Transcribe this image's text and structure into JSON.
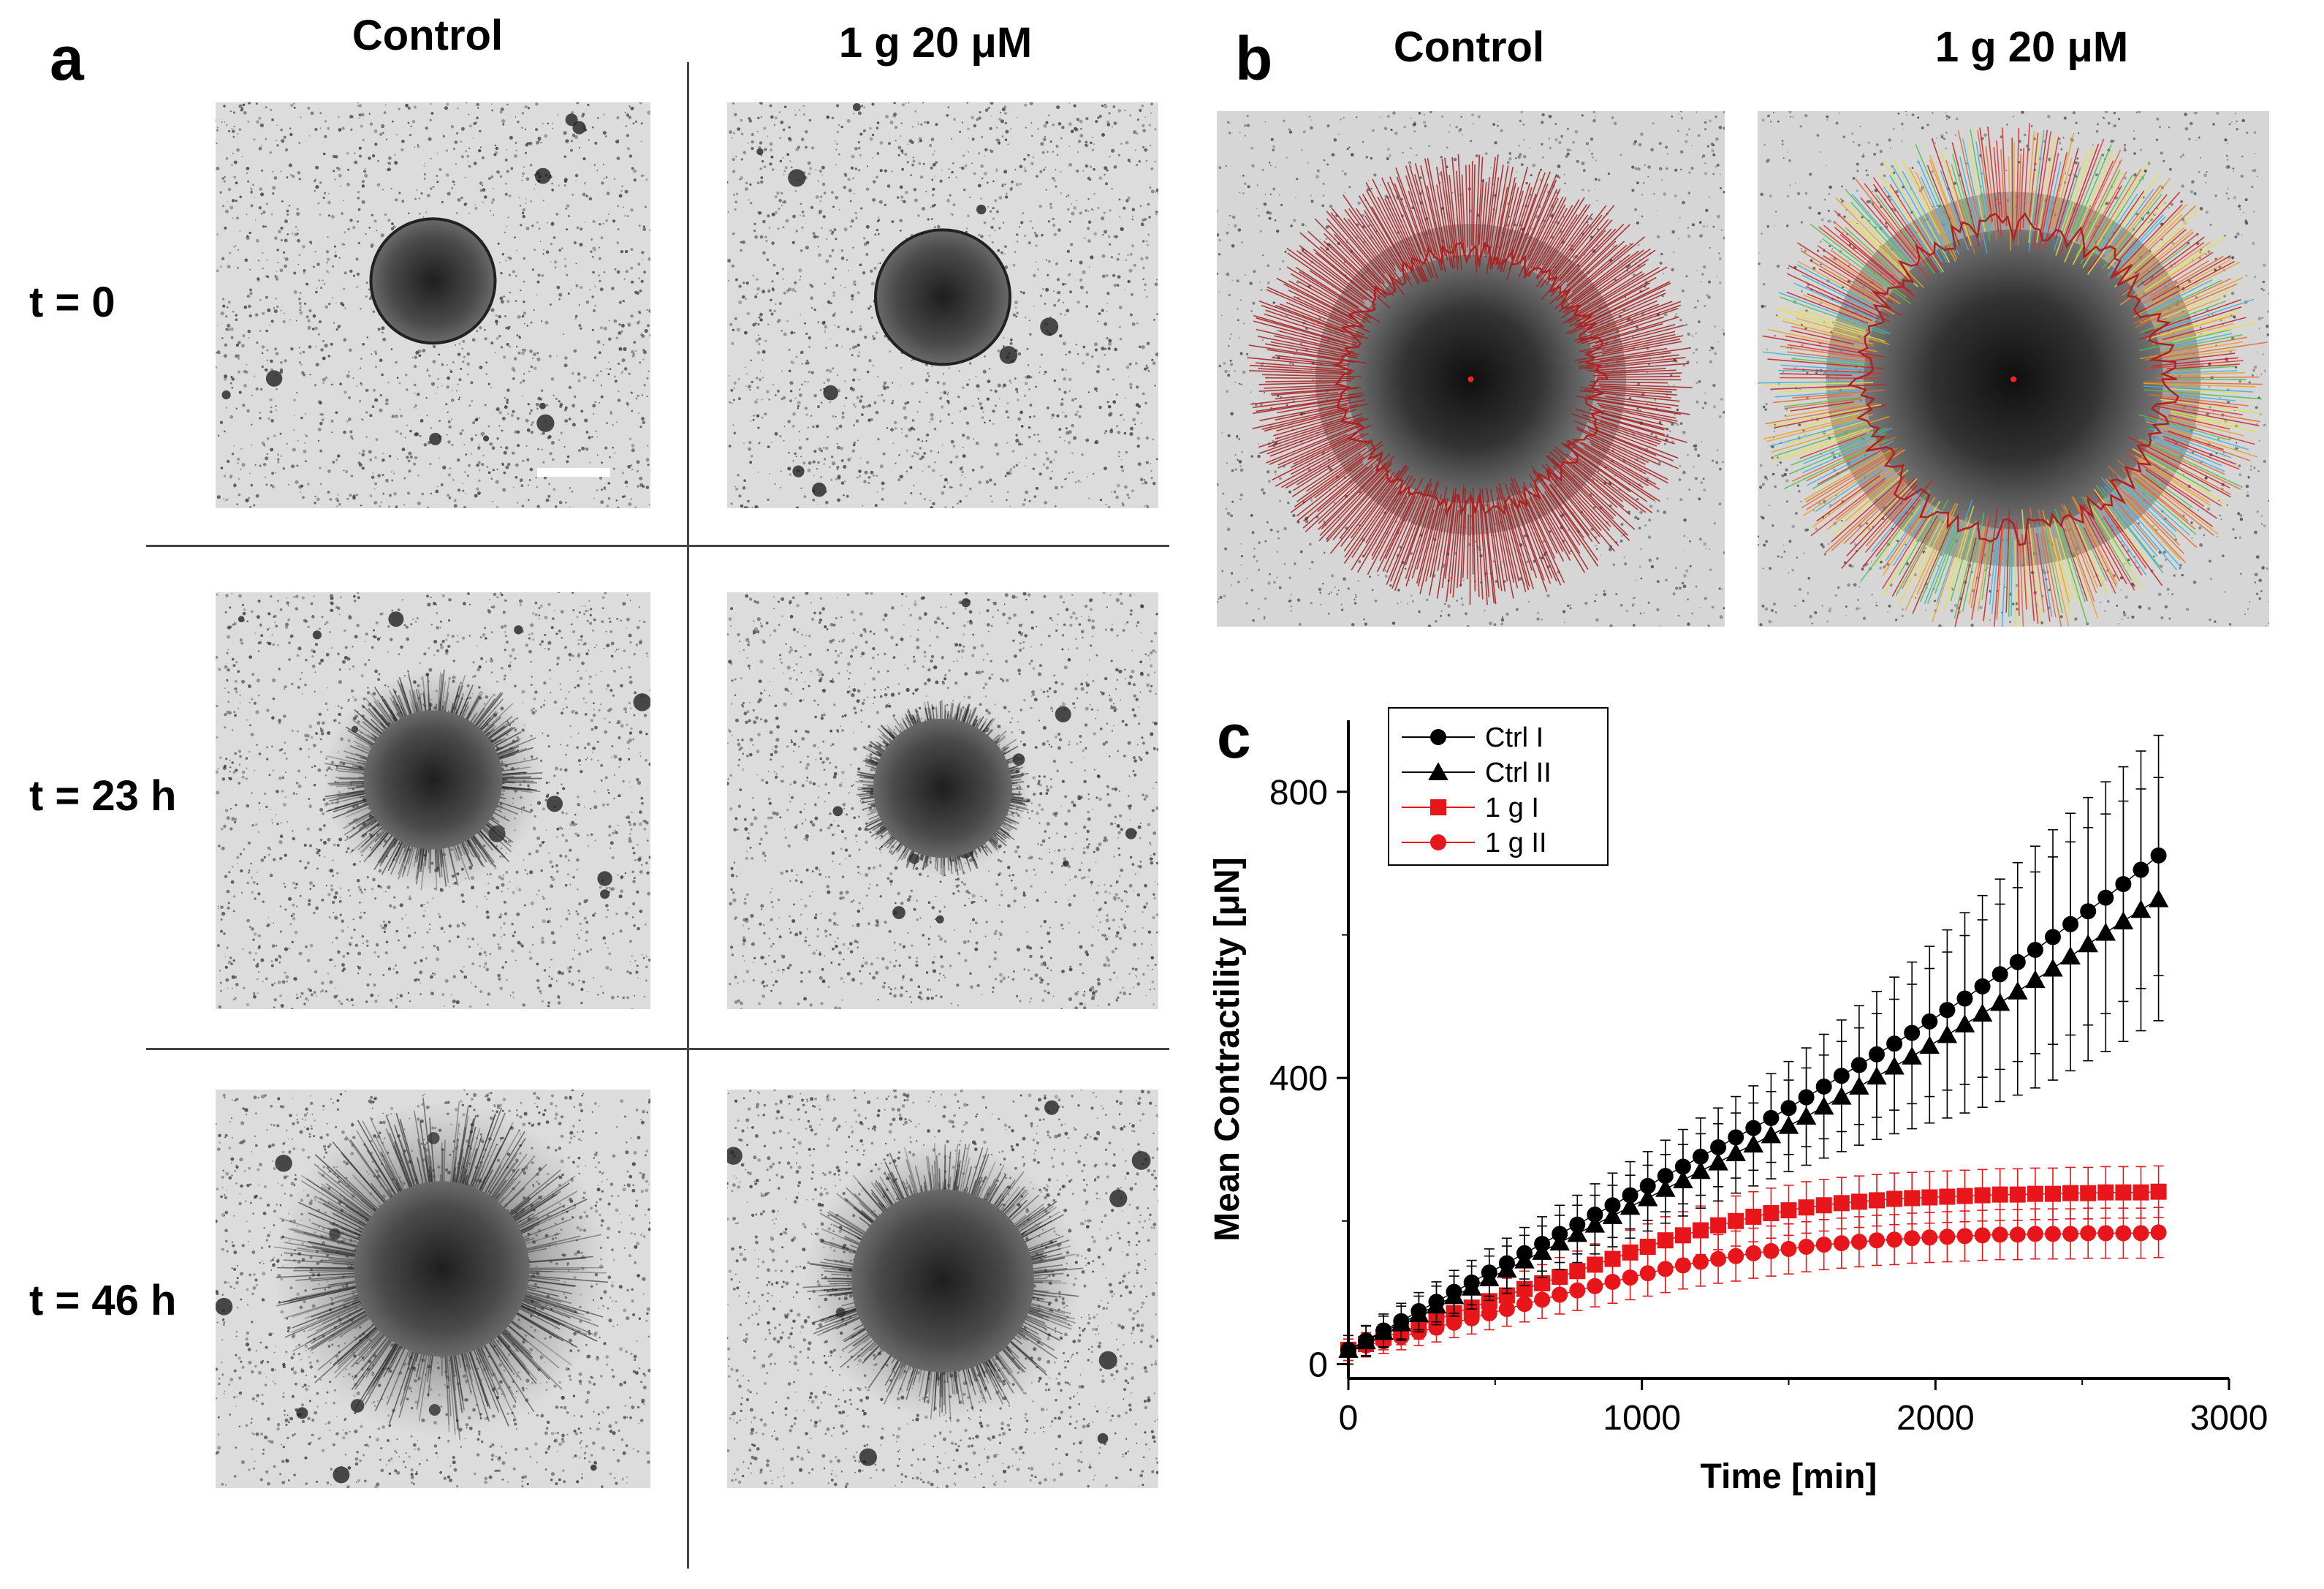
{
  "panel_a": {
    "letter": "a",
    "columns": [
      "Control",
      "1 g 20 μM"
    ],
    "rows": [
      "t = 0",
      "t = 23 h",
      "t = 46 h"
    ]
  },
  "panel_b": {
    "letter": "b",
    "columns": [
      "Control",
      "1 g 20 μM"
    ]
  },
  "panel_c": {
    "letter": "c"
  },
  "colors": {
    "black_series": "#000000",
    "red_series": "#e8161b",
    "vector_red": "#a51c1c",
    "micrograph_bg": "#dcdcdc"
  },
  "chart_data": {
    "type": "scatter",
    "xlabel": "Time [min]",
    "ylabel": "Mean Contractility [μN]",
    "xlim": [
      0,
      3000
    ],
    "ylim": [
      -20,
      900
    ],
    "xticks": [
      0,
      1000,
      2000,
      3000
    ],
    "yticks": [
      0,
      400,
      800
    ],
    "legend_position": "top-left",
    "x": [
      0,
      60,
      120,
      180,
      240,
      300,
      360,
      420,
      480,
      540,
      600,
      660,
      720,
      780,
      840,
      900,
      960,
      1020,
      1080,
      1140,
      1200,
      1260,
      1320,
      1380,
      1440,
      1500,
      1560,
      1620,
      1680,
      1740,
      1800,
      1860,
      1920,
      1980,
      2040,
      2100,
      2160,
      2220,
      2280,
      2340,
      2400,
      2460,
      2520,
      2580,
      2640,
      2700,
      2760
    ],
    "series": [
      {
        "name": "Ctrl I",
        "marker": "circle",
        "color": "#000000",
        "values": [
          20,
          33,
          47,
          60,
          74,
          87,
          101,
          114,
          128,
          141,
          155,
          168,
          182,
          195,
          209,
          222,
          236,
          249,
          263,
          276,
          290,
          303,
          317,
          330,
          344,
          358,
          373,
          388,
          403,
          418,
          433,
          448,
          463,
          479,
          495,
          511,
          528,
          545,
          562,
          579,
          597,
          615,
          633,
          652,
          671,
          691,
          711
        ],
        "errors": [
          20,
          21,
          23,
          25,
          26,
          28,
          30,
          31,
          33,
          35,
          36,
          38,
          40,
          41,
          43,
          45,
          47,
          48,
          50,
          52,
          54,
          55,
          57,
          59,
          62,
          65,
          69,
          73,
          78,
          83,
          88,
          93,
          99,
          105,
          112,
          120,
          127,
          133,
          139,
          145,
          150,
          155,
          159,
          162,
          164,
          166,
          168
        ]
      },
      {
        "name": "Ctrl II",
        "marker": "triangle",
        "color": "#000000",
        "values": [
          20,
          32,
          45,
          57,
          70,
          82,
          95,
          107,
          120,
          132,
          145,
          157,
          170,
          182,
          195,
          207,
          220,
          232,
          245,
          257,
          270,
          282,
          295,
          307,
          320,
          333,
          346,
          360,
          374,
          388,
          402,
          416,
          430,
          445,
          460,
          475,
          490,
          505,
          521,
          537,
          553,
          570,
          587,
          603,
          619,
          635,
          650
        ],
        "errors": [
          20,
          21,
          22,
          24,
          25,
          27,
          28,
          30,
          31,
          33,
          35,
          36,
          38,
          40,
          41,
          43,
          44,
          46,
          48,
          50,
          52,
          54,
          56,
          58,
          61,
          64,
          68,
          72,
          77,
          82,
          88,
          94,
          101,
          108,
          116,
          124,
          131,
          138,
          145,
          151,
          156,
          160,
          163,
          166,
          168,
          169,
          170
        ]
      },
      {
        "name": "1 g I",
        "marker": "square",
        "color": "#e8161b",
        "values": [
          20,
          28,
          37,
          45,
          54,
          62,
          71,
          79,
          88,
          96,
          105,
          113,
          122,
          130,
          139,
          147,
          156,
          164,
          173,
          180,
          187,
          194,
          200,
          206,
          211,
          215,
          219,
          222,
          225,
          227,
          229,
          231,
          232,
          233,
          234,
          235,
          236,
          237,
          237,
          238,
          238,
          239,
          239,
          240,
          240,
          240,
          241
        ],
        "errors": [
          15,
          16,
          17,
          18,
          19,
          20,
          21,
          22,
          23,
          24,
          25,
          26,
          27,
          28,
          29,
          30,
          31,
          32,
          33,
          33,
          34,
          34,
          35,
          35,
          35,
          35,
          36,
          36,
          36,
          36,
          36,
          36,
          36,
          36,
          36,
          36,
          36,
          36,
          36,
          36,
          36,
          36,
          36,
          36,
          36,
          36,
          36
        ]
      },
      {
        "name": "1 g II",
        "marker": "circle",
        "color": "#e8161b",
        "values": [
          20,
          26,
          32,
          38,
          45,
          51,
          58,
          64,
          71,
          77,
          84,
          90,
          97,
          103,
          109,
          115,
          121,
          127,
          133,
          138,
          143,
          147,
          151,
          155,
          158,
          161,
          164,
          167,
          169,
          171,
          173,
          174,
          176,
          177,
          178,
          179,
          180,
          181,
          181,
          182,
          182,
          182,
          183,
          183,
          183,
          183,
          184
        ],
        "errors": [
          15,
          16,
          17,
          18,
          19,
          20,
          21,
          22,
          23,
          24,
          25,
          26,
          27,
          28,
          29,
          30,
          31,
          32,
          33,
          33,
          34,
          34,
          35,
          35,
          35,
          35,
          35,
          35,
          35,
          35,
          35,
          35,
          35,
          35,
          35,
          35,
          35,
          35,
          35,
          35,
          35,
          35,
          35,
          35,
          35,
          35,
          35
        ]
      }
    ]
  }
}
